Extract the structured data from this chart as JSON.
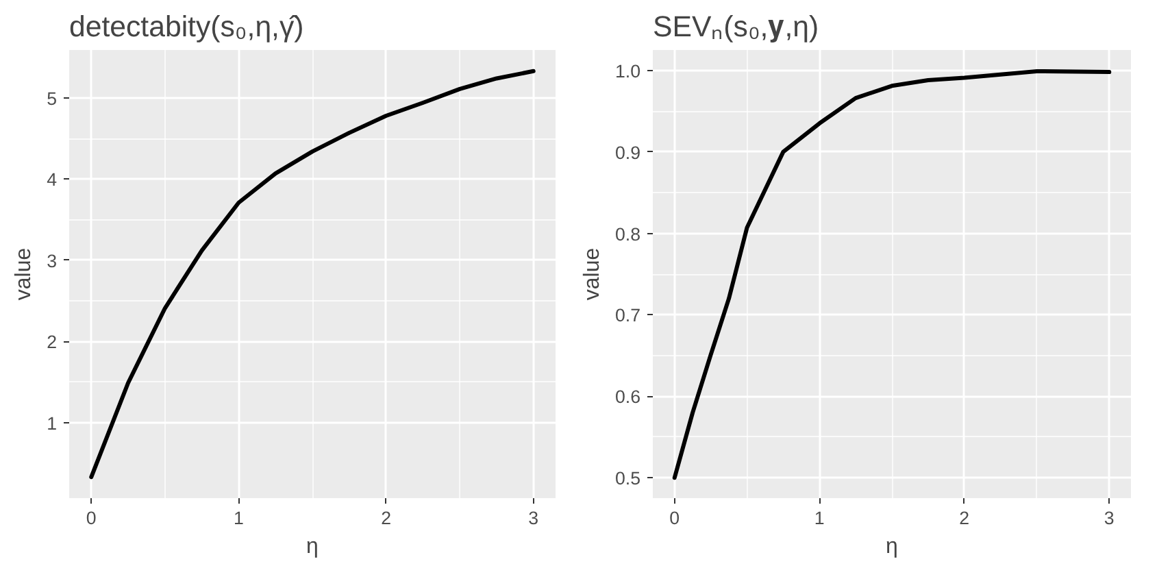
{
  "chart_data": [
    {
      "type": "line",
      "title": "detectabity(s₀,η,γ̂)",
      "xlabel": "η",
      "ylabel": "value",
      "color": "#000000",
      "line_style": "solid",
      "grid": true,
      "x": [
        0,
        0.25,
        0.5,
        0.75,
        1,
        1.25,
        1.5,
        1.75,
        2,
        2.25,
        2.5,
        2.75,
        3
      ],
      "values": [
        0.33,
        1.49,
        2.41,
        3.12,
        3.71,
        4.07,
        4.34,
        4.57,
        4.78,
        4.94,
        5.11,
        5.24,
        5.33
      ],
      "xlim": [
        -0.15,
        3.15
      ],
      "ylim": [
        0.07,
        5.59
      ],
      "xticks": [
        0,
        1,
        2,
        3
      ],
      "yticks": [
        1,
        2,
        3,
        4,
        5
      ]
    },
    {
      "type": "line",
      "title": "SEVₙ(s₀,𝐲,η)",
      "xlabel": "η",
      "ylabel": "value",
      "color": "#000000",
      "line_style": "solid",
      "grid": true,
      "x": [
        0,
        0.125,
        0.25,
        0.375,
        0.5,
        0.75,
        1,
        1.25,
        1.5,
        1.75,
        2,
        2.5,
        3
      ],
      "values": [
        0.5,
        0.58,
        0.651,
        0.72,
        0.807,
        0.9,
        0.935,
        0.966,
        0.981,
        0.988,
        0.991,
        0.999,
        0.998
      ],
      "xlim": [
        -0.15,
        3.15
      ],
      "ylim": [
        0.475,
        1.025
      ],
      "xticks": [
        0,
        1,
        2,
        3
      ],
      "yticks": [
        0.5,
        0.6,
        0.7,
        0.8,
        0.9,
        {
          "value": 1.0,
          "label": "1.0"
        }
      ]
    }
  ]
}
